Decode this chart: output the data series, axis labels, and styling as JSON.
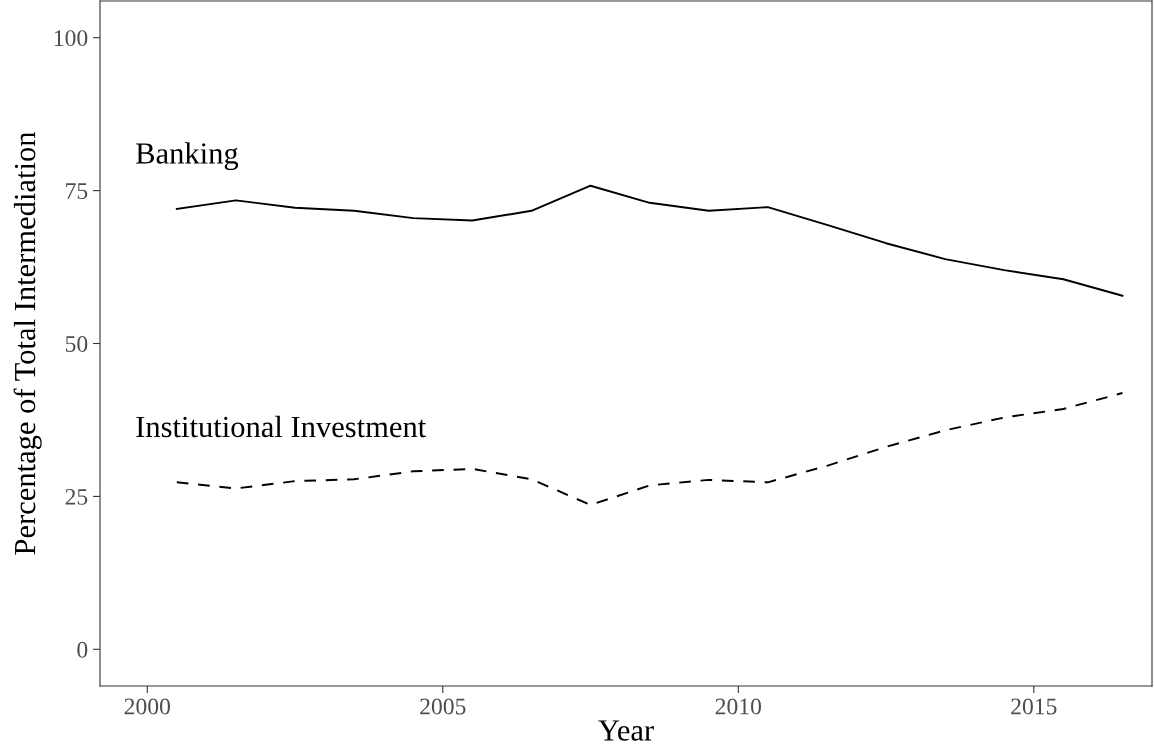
{
  "chart_data": {
    "type": "line",
    "xlabel": "Year",
    "ylabel": "Percentage of Total Intermediation",
    "x": [
      2000.5,
      2001.5,
      2002.5,
      2003.5,
      2004.5,
      2005.5,
      2006.5,
      2007.5,
      2008.5,
      2009.5,
      2010.5,
      2011.5,
      2012.5,
      2013.5,
      2014.5,
      2015.5,
      2016.5
    ],
    "series": [
      {
        "name": "Banking",
        "color": "#000000",
        "line_style": "solid",
        "values": [
          72.0,
          73.4,
          72.2,
          71.7,
          70.5,
          70.1,
          71.7,
          75.8,
          73.0,
          71.7,
          72.3,
          69.4,
          66.4,
          63.8,
          62.0,
          60.5,
          57.8
        ]
      },
      {
        "name": "Institutional Investment",
        "color": "#000000",
        "line_style": "dashed",
        "values": [
          27.3,
          26.3,
          27.5,
          27.8,
          29.1,
          29.5,
          27.8,
          23.6,
          26.8,
          27.7,
          27.3,
          30.0,
          33.1,
          35.8,
          37.9,
          39.3,
          41.9
        ]
      }
    ],
    "xlim": [
      1999.2,
      2017.0
    ],
    "xticks": [
      2000,
      2005,
      2010,
      2015
    ],
    "ylim": [
      -6,
      106
    ],
    "yticks": [
      0,
      25,
      50,
      75,
      100
    ],
    "grid": false,
    "legend": false,
    "marker": "none"
  }
}
